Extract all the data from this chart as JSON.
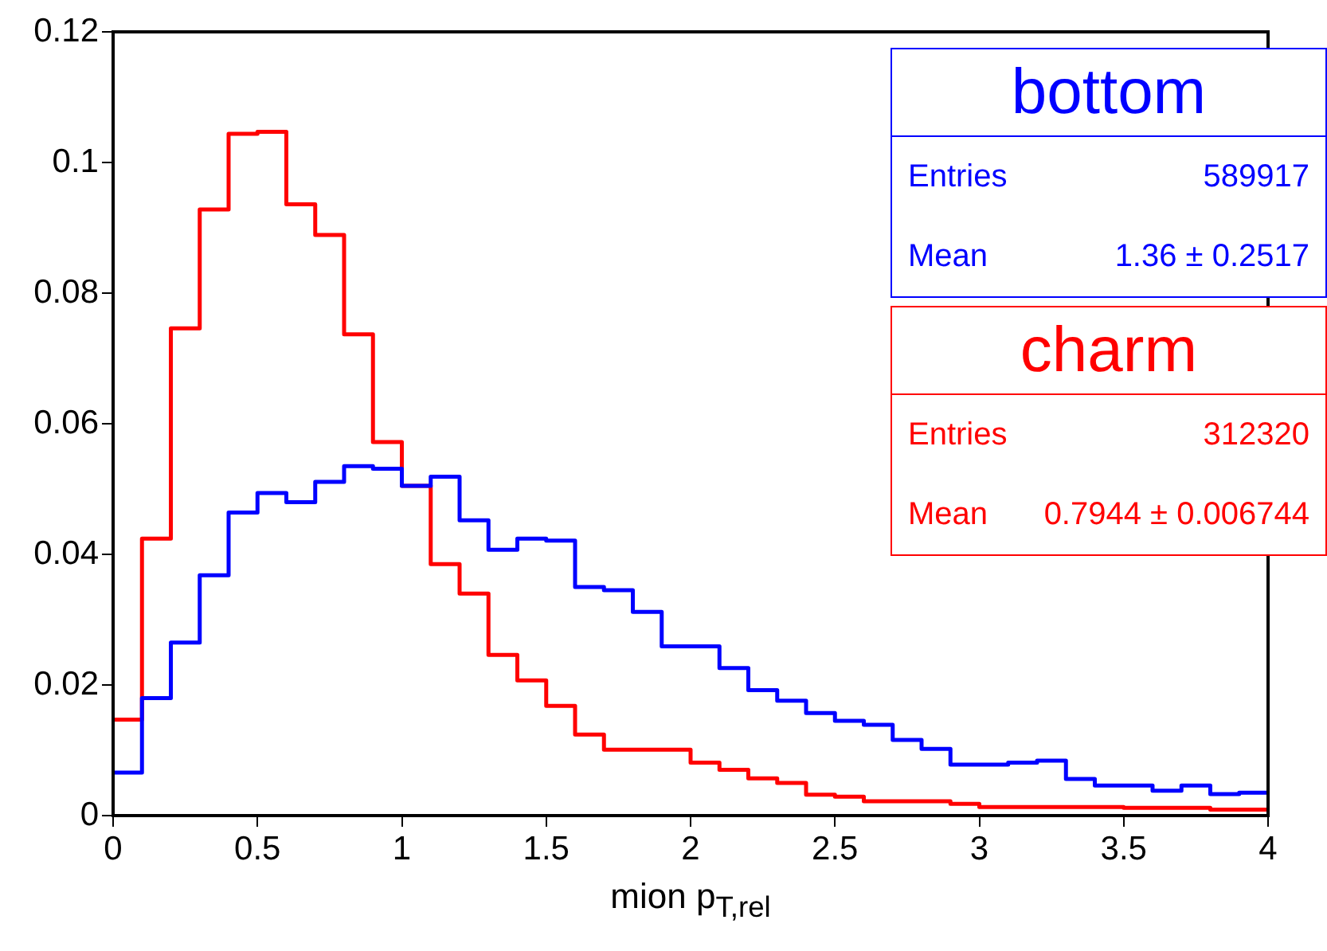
{
  "chart_data": {
    "type": "histogram",
    "xlabel": "mion p$_{T,rel}$",
    "bins": [
      0,
      0.1,
      0.2,
      0.3,
      0.4,
      0.5,
      0.6,
      0.7,
      0.8,
      0.9,
      1.0,
      1.1,
      1.2,
      1.3,
      1.4,
      1.5,
      1.6,
      1.7,
      1.8,
      1.9,
      2.0,
      2.1,
      2.2,
      2.3,
      2.4,
      2.5,
      2.6,
      2.7,
      2.8,
      2.9,
      3.0,
      3.1,
      3.2,
      3.3,
      3.4,
      3.5,
      3.6,
      3.7,
      3.8,
      3.9,
      4.0
    ],
    "series": [
      {
        "name": "bottom",
        "color": "#0000ff",
        "values": [
          0.0066,
          0.018,
          0.0265,
          0.0368,
          0.0464,
          0.0494,
          0.048,
          0.0511,
          0.0535,
          0.0531,
          0.0505,
          0.0519,
          0.0452,
          0.0407,
          0.0424,
          0.0421,
          0.035,
          0.0345,
          0.0312,
          0.0259,
          0.0259,
          0.0226,
          0.0192,
          0.0176,
          0.0157,
          0.0145,
          0.0139,
          0.0116,
          0.0102,
          0.0078,
          0.0078,
          0.0081,
          0.0084,
          0.0056,
          0.0046,
          0.0046,
          0.0038,
          0.0046,
          0.0033,
          0.0035
        ]
      },
      {
        "name": "charm",
        "color": "#ff0000",
        "values": [
          0.0147,
          0.0424,
          0.0746,
          0.0928,
          0.1044,
          0.1047,
          0.0936,
          0.0889,
          0.0737,
          0.0572,
          0.0505,
          0.0385,
          0.034,
          0.0246,
          0.0207,
          0.0168,
          0.0124,
          0.0101,
          0.0101,
          0.0101,
          0.0081,
          0.007,
          0.0057,
          0.005,
          0.0032,
          0.0029,
          0.0022,
          0.0022,
          0.0022,
          0.0018,
          0.0013,
          0.0013,
          0.0013,
          0.0013,
          0.0013,
          0.0012,
          0.0012,
          0.0012,
          0.0009,
          0.0009
        ]
      }
    ],
    "annotations": [
      "Entries",
      "589917",
      "Mean",
      "1.36 ± 0.2517",
      "Entries",
      "312320",
      "Mean",
      "0.7944 ± 0.006744"
    ],
    "xlim": [
      0,
      4
    ],
    "xticks": [
      0,
      0.5,
      1,
      1.5,
      2,
      2.5,
      3,
      3.5,
      4
    ],
    "ylim": [
      0,
      0.12
    ],
    "yticks": [
      0,
      0.02,
      0.04,
      0.06,
      0.08,
      0.1,
      0.12
    ],
    "grid": false,
    "legend": "top right"
  }
}
